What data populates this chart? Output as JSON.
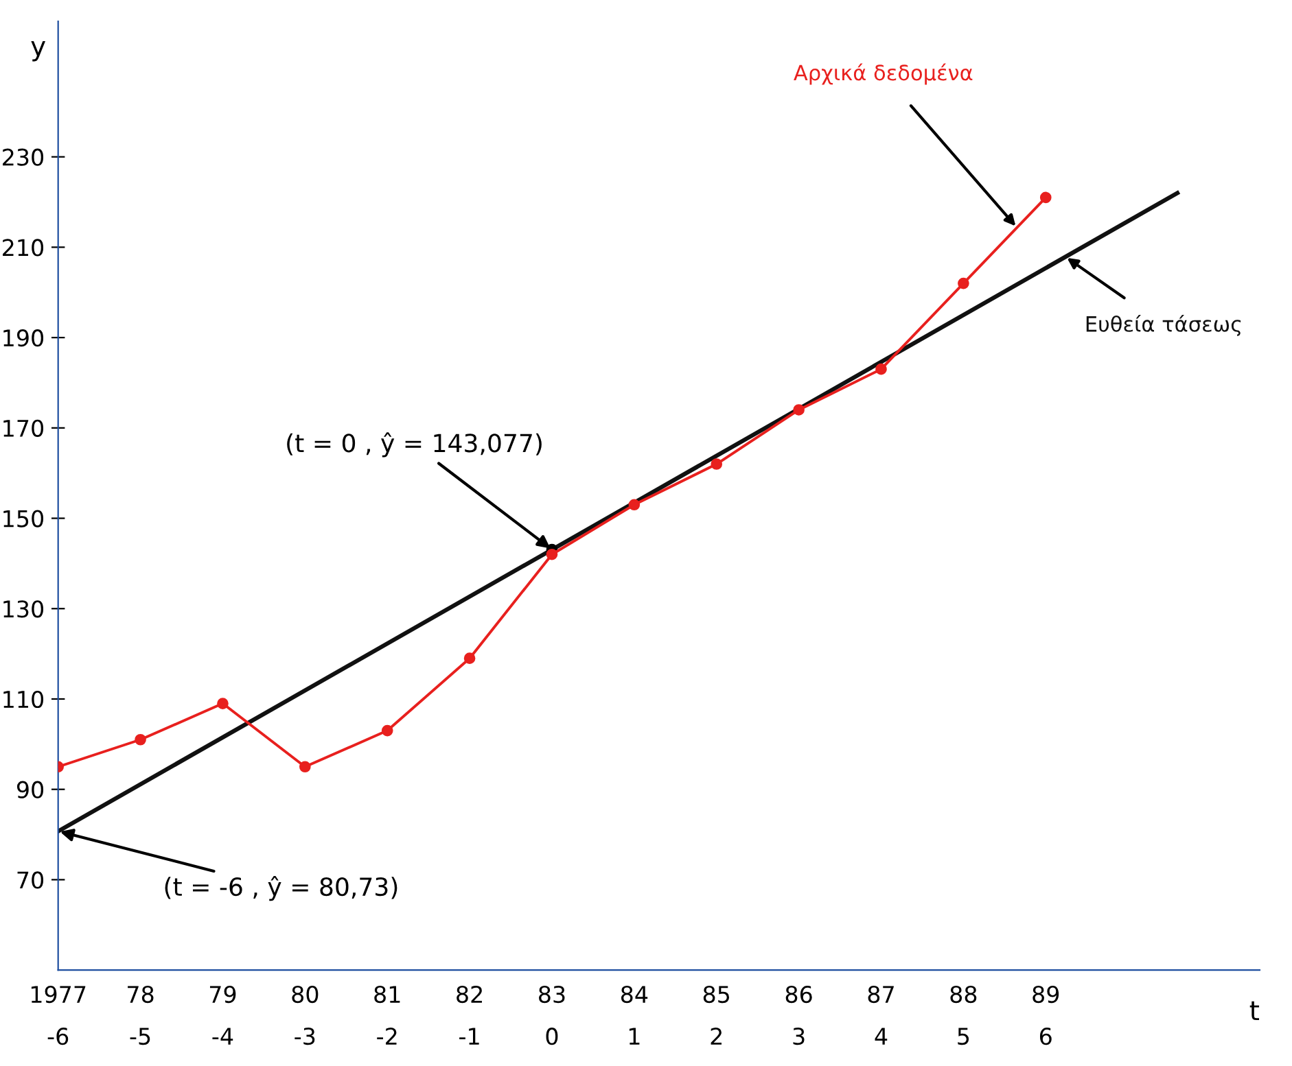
{
  "chart_data": {
    "type": "line",
    "xlabel": "t",
    "ylabel": "y",
    "xlim": [
      -6,
      8.6
    ],
    "ylim": [
      50,
      260
    ],
    "xticks": [
      -6,
      -5,
      -4,
      -3,
      -2,
      -1,
      0,
      1,
      2,
      3,
      4,
      5,
      6
    ],
    "x2lim": [
      1977,
      1991.6
    ],
    "x2ticks": [
      1977,
      {
        "value": 1978,
        "label": "78"
      },
      {
        "value": 1979,
        "label": "79"
      },
      {
        "value": 1980,
        "label": "80"
      },
      {
        "value": 1981,
        "label": "81"
      },
      {
        "value": 1982,
        "label": "82"
      },
      {
        "value": 1983,
        "label": "83"
      },
      {
        "value": 1984,
        "label": "84"
      },
      {
        "value": 1985,
        "label": "85"
      },
      {
        "value": 1986,
        "label": "86"
      },
      {
        "value": 1987,
        "label": "87"
      },
      {
        "value": 1988,
        "label": "88"
      },
      {
        "value": 1989,
        "label": "89"
      }
    ],
    "yticks": [
      70,
      90,
      110,
      130,
      150,
      170,
      190,
      210,
      230
    ],
    "grid": false,
    "legend": false,
    "series": [
      {
        "name": "Αρχικά δεδομένα",
        "color": "#e8201e",
        "marker": "circle",
        "x": [
          -6,
          -5,
          -4,
          -3,
          -2,
          -1,
          0,
          1,
          2,
          3,
          4,
          5,
          6
        ],
        "values": [
          95,
          101,
          109,
          95,
          103,
          119,
          142,
          153,
          162,
          174,
          183,
          202,
          221
        ]
      },
      {
        "name": "Ευθεία τάσεως",
        "color": "#111111",
        "marker": "none",
        "x": [
          -6,
          7.6
        ],
        "values": [
          80.73,
          222
        ]
      }
    ],
    "annotations": [
      {
        "text": "(t = 0 , ŷ = 143,077)",
        "x": 0,
        "y": 143.077
      },
      {
        "text": "(t = -6 , ŷ = 80,73)",
        "x": -6,
        "y": 80.73
      }
    ]
  }
}
